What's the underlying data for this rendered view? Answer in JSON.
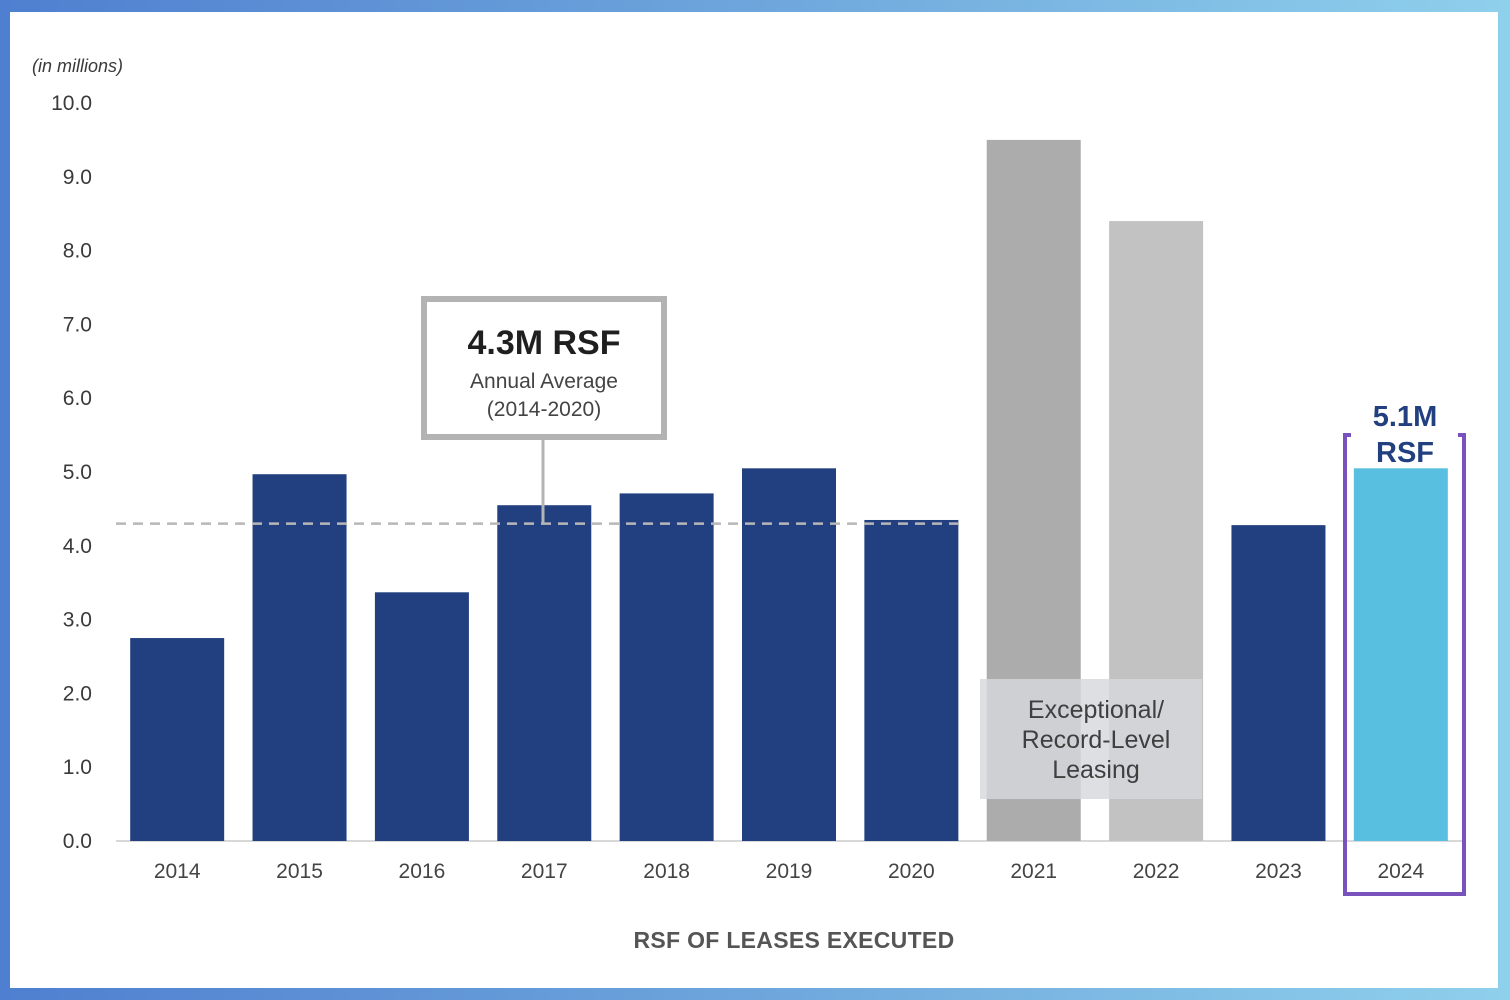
{
  "chart_data": {
    "type": "bar",
    "title": "RSF OF LEASES EXECUTED",
    "ylabel": "(in millions)",
    "xlabel": "RSF OF LEASES EXECUTED",
    "ylim": [
      0,
      10
    ],
    "yticks": [
      "0.0",
      "1.0",
      "2.0",
      "3.0",
      "4.0",
      "5.0",
      "6.0",
      "7.0",
      "8.0",
      "9.0",
      "10.0"
    ],
    "categories": [
      "2014",
      "2015",
      "2016",
      "2017",
      "2018",
      "2019",
      "2020",
      "2021",
      "2022",
      "2023",
      "2024"
    ],
    "values": [
      2.75,
      4.97,
      3.37,
      4.55,
      4.71,
      5.05,
      4.35,
      9.5,
      8.4,
      4.28,
      5.05
    ],
    "bar_groups": [
      "normal",
      "normal",
      "normal",
      "normal",
      "normal",
      "normal",
      "normal",
      "exceptional",
      "exceptional",
      "normal",
      "highlight"
    ],
    "average_line": {
      "value": 4.3,
      "from": "2014",
      "to": "2020"
    },
    "colors": {
      "normal": "#22407f",
      "exceptional_2021": "#acacac",
      "exceptional_2022": "#c2c2c2",
      "highlight": "#59bfe0",
      "highlight_border": "#7a52bd",
      "highlight_text": "#22407f",
      "callout_border": "#b3b3b3",
      "overlay": "#d6d8dc"
    },
    "annotations": {
      "average_callout": {
        "headline": "4.3M RSF",
        "line1": "Annual Average",
        "line2": "(2014-2020)"
      },
      "exceptional_label": {
        "line1": "Exceptional/",
        "line2": "Record-Level",
        "line3": "Leasing"
      },
      "highlight_label": {
        "line1": "5.1M",
        "line2": "RSF"
      }
    }
  }
}
